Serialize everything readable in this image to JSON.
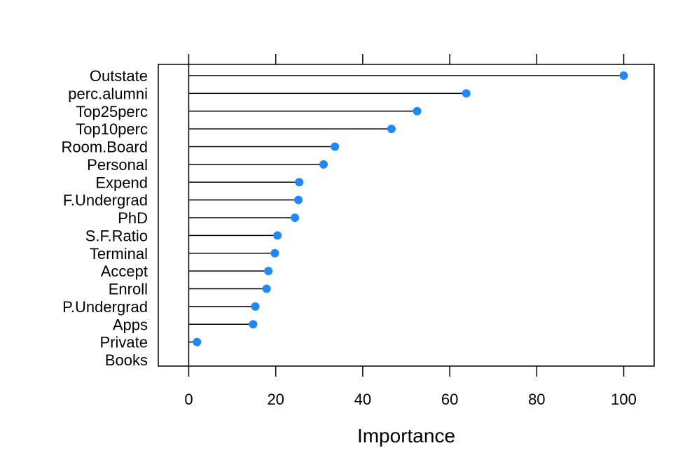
{
  "chart_data": {
    "type": "dotplot",
    "xlabel": "Importance",
    "xlim": [
      -7,
      107
    ],
    "xticks": [
      0,
      20,
      40,
      60,
      80,
      100
    ],
    "tick_labels": [
      "0",
      "20",
      "40",
      "60",
      "80",
      "100"
    ],
    "grid": false,
    "legend": "none",
    "point_color": "#1e88ff",
    "categories": [
      "Outstate",
      "perc.alumni",
      "Top25perc",
      "Top10perc",
      "Room.Board",
      "Personal",
      "Expend",
      "F.Undergrad",
      "PhD",
      "S.F.Ratio",
      "Terminal",
      "Accept",
      "Enroll",
      "P.Undergrad",
      "Apps",
      "Private",
      "Books"
    ],
    "values": [
      100,
      63.8,
      52.5,
      46.6,
      33.6,
      31.0,
      25.4,
      25.2,
      24.4,
      20.4,
      19.8,
      18.3,
      17.9,
      15.3,
      14.8,
      1.9,
      0
    ]
  }
}
